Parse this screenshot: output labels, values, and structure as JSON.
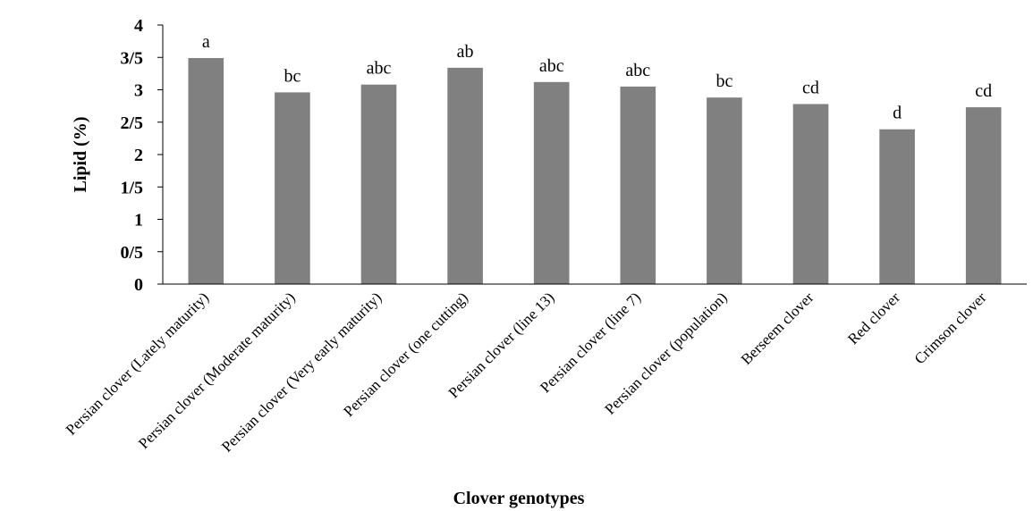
{
  "chart_data": {
    "type": "bar",
    "xlabel": "Clover genotypes",
    "ylabel": "Lipid (%)",
    "ylim": [
      0,
      4
    ],
    "yticks": [
      0,
      0.5,
      1,
      1.5,
      2,
      2.5,
      3,
      3.5,
      4
    ],
    "ytick_labels": [
      "0",
      "0/5",
      "1",
      "1/5",
      "2",
      "2/5",
      "3",
      "3/5",
      "4"
    ],
    "categories": [
      "Persian clover (Lately maturity)",
      "Persian clover (Moderate maturity)",
      "Persian clover (Very early maturity)",
      "Persian clover (one cutting)",
      "Persian clover (line 13)",
      "Persian clover (line 7)",
      "Persian clover (population)",
      "Berseem clover",
      "Red clover",
      "Crimson clover"
    ],
    "values": [
      3.49,
      2.96,
      3.08,
      3.34,
      3.12,
      3.05,
      2.88,
      2.78,
      2.39,
      2.73
    ],
    "significance_letters": [
      "a",
      "bc",
      "abc",
      "ab",
      "abc",
      "abc",
      "bc",
      "cd",
      "d",
      "cd"
    ],
    "bar_color": "#808080",
    "grid": false
  }
}
